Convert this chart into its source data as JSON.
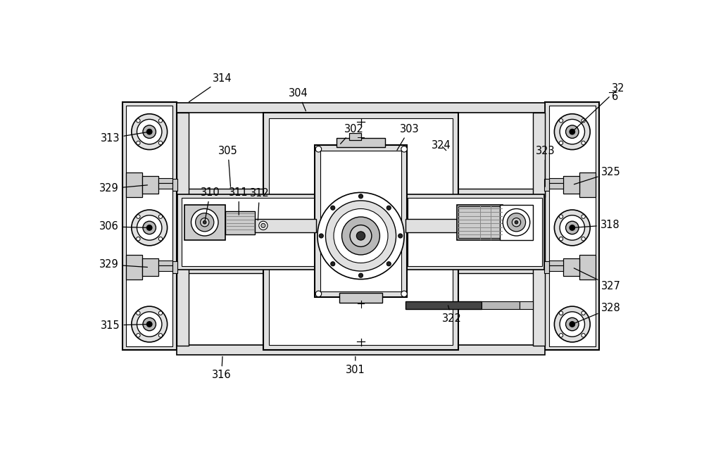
{
  "bg_color": "#ffffff",
  "line_color": "#000000",
  "light_gray": "#b8b8b8",
  "mid_gray": "#888888",
  "dark_gray": "#555555",
  "fill_gray": "#cccccc",
  "fill_light": "#e0e0e0",
  "fill_white": "#ffffff"
}
